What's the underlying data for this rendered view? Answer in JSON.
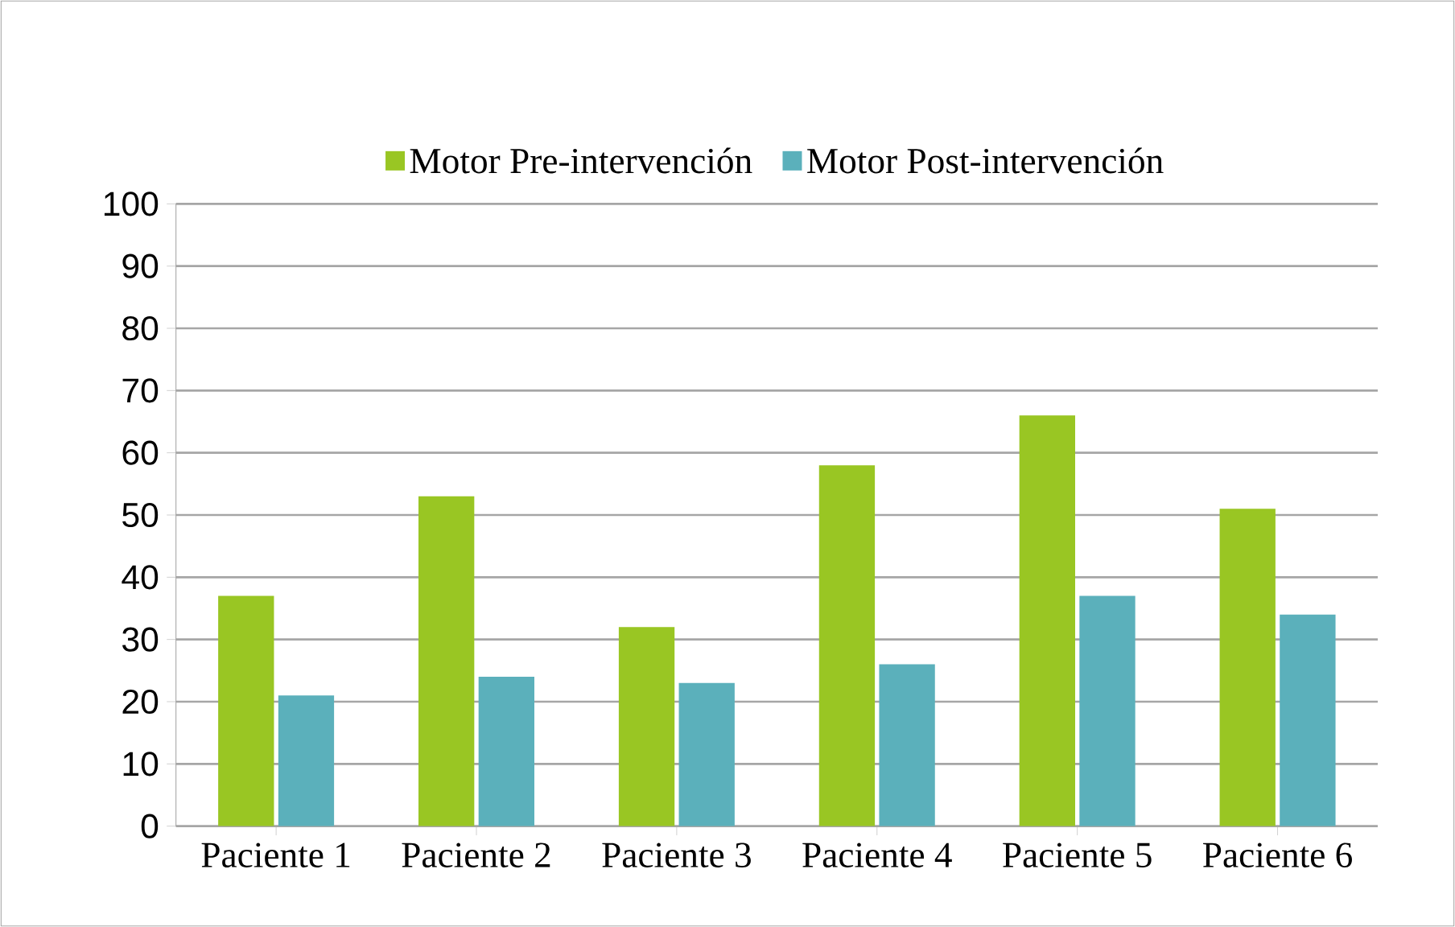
{
  "chart_data": {
    "type": "bar",
    "categories": [
      "Paciente 1",
      "Paciente 2",
      "Paciente 3",
      "Paciente 4",
      "Paciente 5",
      "Paciente 6"
    ],
    "series": [
      {
        "name": "Motor Pre-intervención",
        "color": "#99c623",
        "values": [
          37,
          53,
          32,
          58,
          66,
          51
        ]
      },
      {
        "name": "Motor Post-intervención",
        "color": "#5bb0bb",
        "values": [
          21,
          24,
          23,
          26,
          37,
          34
        ]
      }
    ],
    "ylim": [
      0,
      100
    ],
    "yticks": [
      0,
      10,
      20,
      30,
      40,
      50,
      60,
      70,
      80,
      90,
      100
    ],
    "grid": "y",
    "legend": "top"
  }
}
